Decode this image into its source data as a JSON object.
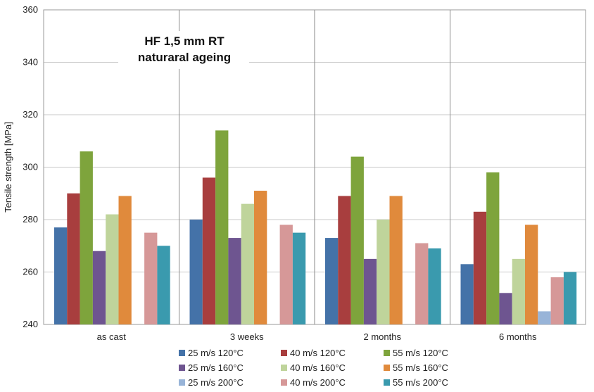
{
  "chart_data": {
    "type": "bar",
    "title": "",
    "annotation": [
      "HF   1,5 mm  RT",
      "naturaral ageing"
    ],
    "ylabel": "Tensile strength [MPa]",
    "xlabel": "",
    "ylim": [
      240,
      360
    ],
    "yticks": [
      240,
      260,
      280,
      300,
      320,
      340,
      360
    ],
    "grid": true,
    "legend_position": "bottom",
    "categories": [
      "as cast",
      "3 weeks",
      "2 months",
      "6 months"
    ],
    "series": [
      {
        "name": "25 m/s 120°C",
        "color": "#4472a8",
        "values": [
          277,
          280,
          273,
          263
        ]
      },
      {
        "name": "40 m/s 120°C",
        "color": "#a83e3e",
        "values": [
          290,
          296,
          289,
          283
        ]
      },
      {
        "name": "55 m/s 120°C",
        "color": "#7ea43c",
        "values": [
          306,
          314,
          304,
          298
        ]
      },
      {
        "name": "25 m/s 160°C",
        "color": "#6e5590",
        "values": [
          268,
          273,
          265,
          252
        ]
      },
      {
        "name": "40 m/s 160°C",
        "color": "#bfd49b",
        "values": [
          282,
          286,
          280,
          265
        ]
      },
      {
        "name": "55 m/s 160°C",
        "color": "#e08a3c",
        "values": [
          289,
          291,
          289,
          278
        ]
      },
      {
        "name": "25 m/s 200°C",
        "color": "#98b4d8",
        "values": [
          null,
          null,
          null,
          245
        ]
      },
      {
        "name": "40 m/s 200°C",
        "color": "#d69898",
        "values": [
          275,
          278,
          271,
          258
        ]
      },
      {
        "name": "55 m/s 200°C",
        "color": "#3a9aae",
        "values": [
          270,
          275,
          269,
          260
        ]
      }
    ]
  }
}
